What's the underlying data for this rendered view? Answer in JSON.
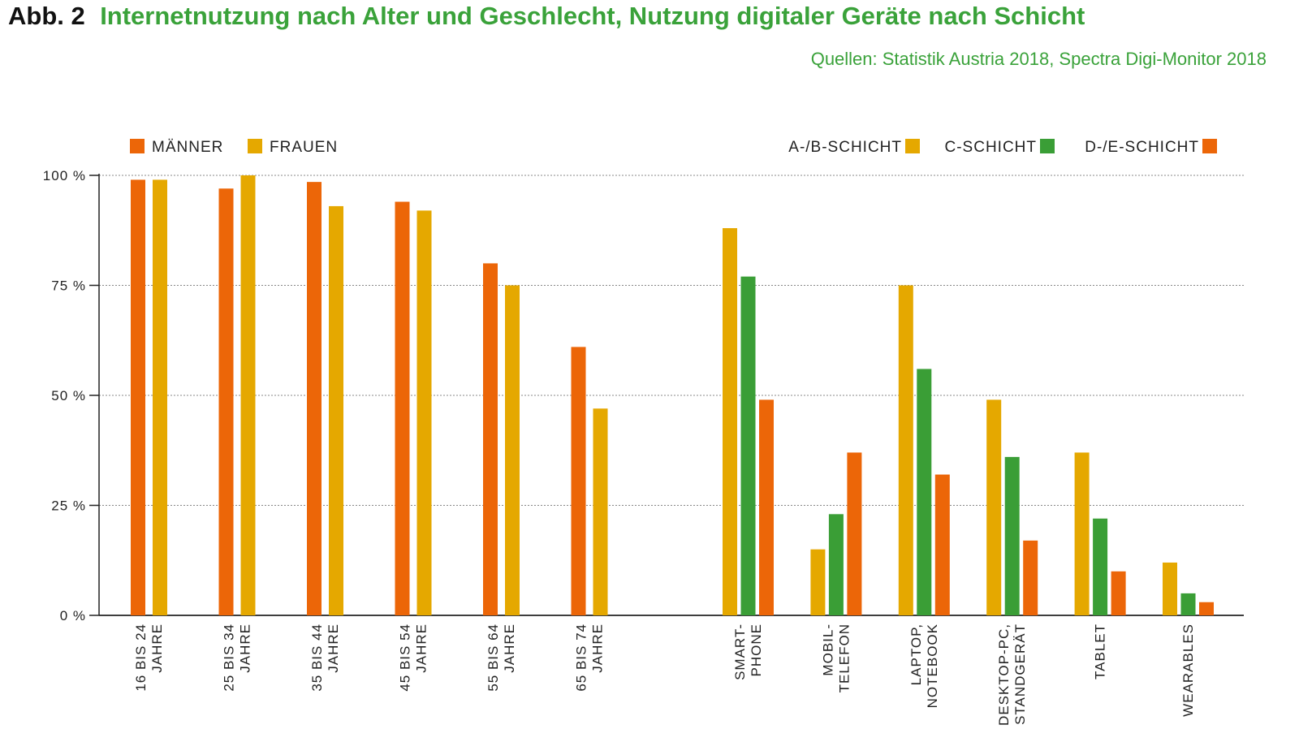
{
  "header": {
    "figure_number": "Abb. 2",
    "title": "Internetnutzung nach Alter und Geschlecht, Nutzung digitaler Geräte nach Schicht",
    "source": "Quellen: Statistik Austria 2018, Spectra Digi-Monitor 2018"
  },
  "colors": {
    "orange": "#EC6608",
    "yellow": "#E5A800",
    "green": "#3A9E36",
    "title_green": "#3AA23A",
    "axis": "#222222",
    "grid": "#888888"
  },
  "chart_data": [
    {
      "type": "bar",
      "title": "",
      "xlabel": "",
      "ylabel": "",
      "ylim": [
        0,
        100
      ],
      "yticks": [
        "0 %",
        "25 %",
        "50 %",
        "75 %",
        "100 %"
      ],
      "grid": true,
      "legend_position": "top-left",
      "categories": [
        [
          "16 BIS 24",
          "JAHRE"
        ],
        [
          "25 BIS 34",
          "JAHRE"
        ],
        [
          "35 BIS 44",
          "JAHRE"
        ],
        [
          "45 BIS 54",
          "JAHRE"
        ],
        [
          "55 BIS 64",
          "JAHRE"
        ],
        [
          "65 BIS 74",
          "JAHRE"
        ]
      ],
      "series": [
        {
          "name": "MÄNNER",
          "color": "#EC6608",
          "values": [
            99,
            97,
            98.5,
            94,
            80,
            61
          ]
        },
        {
          "name": "FRAUEN",
          "color": "#E5A800",
          "values": [
            99,
            100,
            93,
            92,
            75,
            47
          ]
        }
      ]
    },
    {
      "type": "bar",
      "title": "",
      "xlabel": "",
      "ylabel": "",
      "ylim": [
        0,
        100
      ],
      "grid": true,
      "legend_position": "top-right",
      "categories": [
        [
          "SMART-",
          "PHONE"
        ],
        [
          "MOBIL-",
          "TELEFON"
        ],
        [
          "LAPTOP,",
          "NOTEBOOK"
        ],
        [
          "DESKTOP-PC,",
          "STANDGERÄT"
        ],
        [
          "TABLET"
        ],
        [
          "WEARABLES"
        ]
      ],
      "series": [
        {
          "name": "A-/B-SCHICHT",
          "color": "#E5A800",
          "values": [
            88,
            15,
            75,
            49,
            37,
            12
          ]
        },
        {
          "name": "C-SCHICHT",
          "color": "#3A9E36",
          "values": [
            77,
            23,
            56,
            36,
            22,
            5
          ]
        },
        {
          "name": "D-/E-SCHICHT",
          "color": "#EC6608",
          "values": [
            49,
            37,
            32,
            17,
            10,
            3
          ]
        }
      ]
    }
  ]
}
